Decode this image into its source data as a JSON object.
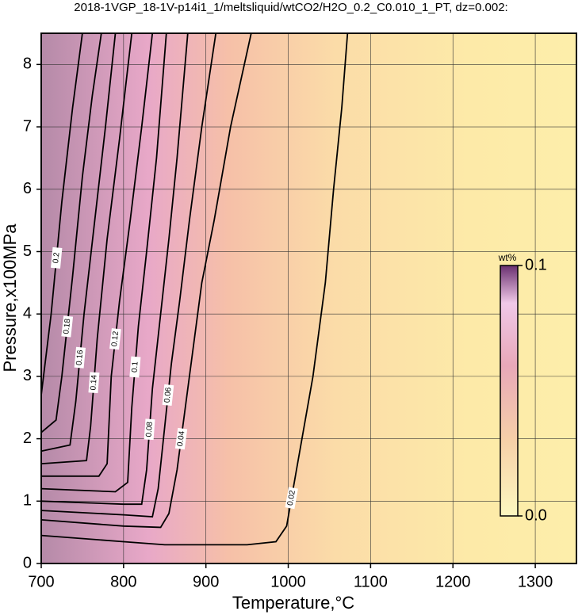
{
  "chart_data": {
    "type": "contour",
    "title": "2018-1VGP_18-1V-p14i1_1/meltsliquid/wtCO2/H2O_0.2_C0.010_1_PT, dz=0.002:",
    "x_label": "Temperature,°C",
    "y_label": "Pressure,x100MPa",
    "xlim": [
      700,
      1350
    ],
    "ylim": [
      0,
      8.5
    ],
    "xticks": [
      700,
      800,
      900,
      1000,
      1100,
      1200,
      1300
    ],
    "yticks": [
      0,
      1,
      2,
      3,
      4,
      5,
      6,
      7,
      8
    ],
    "grid": true,
    "colorbar": {
      "label": "wt%",
      "lim": [
        0,
        0.1
      ],
      "ticks": [
        {
          "value": 0,
          "label": "0.0"
        },
        {
          "value": 0.1,
          "label": "0.1"
        }
      ]
    },
    "contours": [
      {
        "level": 0.02,
        "x": [
          700,
          800,
          850,
          950,
          985,
          998,
          1010,
          1030,
          1045,
          1055,
          1065,
          1072
        ],
        "y": [
          0.45,
          0.35,
          0.3,
          0.3,
          0.35,
          0.6,
          1.5,
          3,
          4.5,
          6,
          7.3,
          8.5
        ]
      },
      {
        "level": 0.04,
        "x": [
          700,
          800,
          845,
          855,
          865,
          875,
          885,
          895,
          910,
          930,
          955
        ],
        "y": [
          0.7,
          0.6,
          0.58,
          0.8,
          1.5,
          2.5,
          3.5,
          4.5,
          5.5,
          7,
          8.5
        ]
      },
      {
        "level": 0.06,
        "x": [
          700,
          800,
          835,
          842,
          850,
          858,
          868,
          880,
          895,
          912
        ],
        "y": [
          0.85,
          0.78,
          0.75,
          1.2,
          2.2,
          3.2,
          4.2,
          5.5,
          7,
          8.5
        ]
      },
      {
        "level": 0.08,
        "x": [
          700,
          800,
          822,
          828,
          835,
          845,
          855,
          865,
          878
        ],
        "y": [
          1.0,
          0.95,
          0.95,
          1.5,
          2.8,
          4.0,
          5.2,
          6.5,
          8.5
        ]
      },
      {
        "level": 0.1,
        "x": [
          700,
          790,
          805,
          810,
          818,
          828,
          840,
          852
        ],
        "y": [
          1.2,
          1.15,
          1.3,
          2.5,
          3.8,
          5.0,
          6.5,
          8.5
        ]
      },
      {
        "level": 0.12,
        "x": [
          700,
          770,
          780,
          785,
          795,
          808,
          822,
          835
        ],
        "y": [
          1.4,
          1.4,
          1.6,
          3,
          4.2,
          5.5,
          7,
          8.5
        ]
      },
      {
        "level": 0.14,
        "x": [
          700,
          755,
          760,
          768,
          780,
          795,
          810
        ],
        "y": [
          1.6,
          1.65,
          2.2,
          3.6,
          5.2,
          6.8,
          8.5
        ]
      },
      {
        "level": 0.16,
        "x": [
          700,
          735,
          742,
          752,
          765,
          778,
          790
        ],
        "y": [
          1.8,
          1.9,
          2.6,
          4,
          5.5,
          7,
          8.5
        ]
      },
      {
        "level": 0.18,
        "x": [
          700,
          718,
          725,
          738,
          750,
          762,
          773
        ],
        "y": [
          2.1,
          2.3,
          3,
          4.6,
          6.2,
          7.5,
          8.5
        ]
      },
      {
        "level": 0.2,
        "x": [
          700,
          712,
          725,
          738,
          750
        ],
        "y": [
          2.7,
          4,
          5.8,
          7.3,
          8.5
        ]
      }
    ]
  }
}
